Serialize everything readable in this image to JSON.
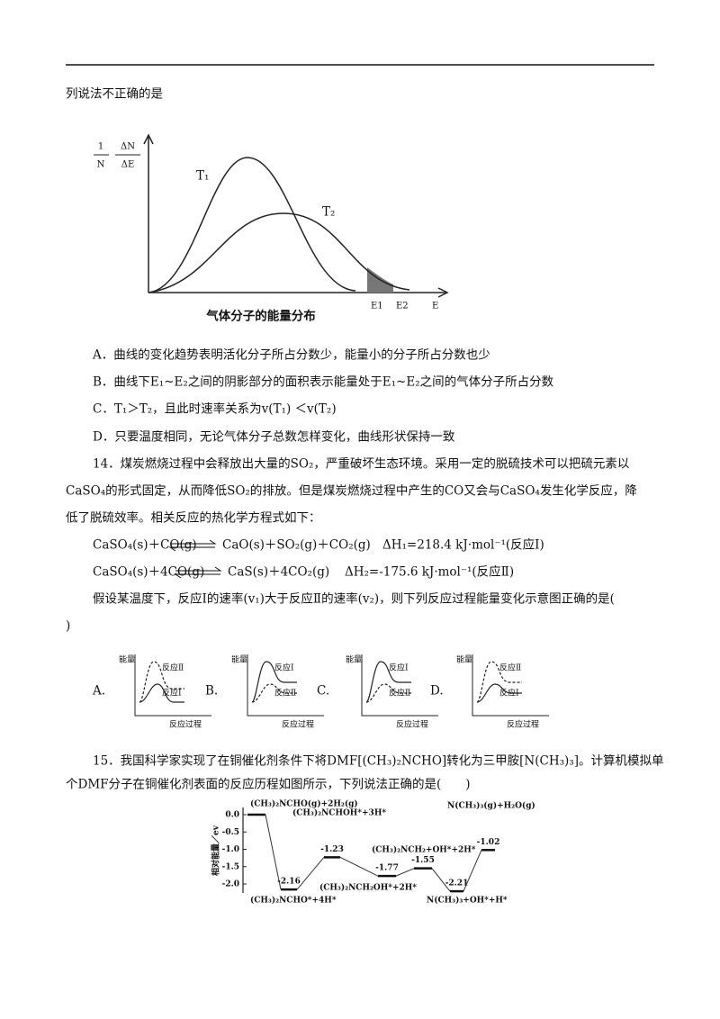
{
  "question_13_tail": "列说法不正确的是",
  "figure_1": {
    "y_label_numerator": "1",
    "y_label_denominator": "N",
    "y_label_delta_numerator": "ΔN",
    "y_label_delta_denominator": "ΔE",
    "curve_labels": [
      "T₁",
      "T₂"
    ],
    "x_labels": [
      "E1",
      "E2",
      "E"
    ],
    "caption": "气体分子的能量分布"
  },
  "options_13": [
    "A．曲线的变化趋势表明活化分子所占分数少，能量小的分子所占分数也少",
    "B．曲线下E₁~E₂之间的阴影部分的面积表示能量处于E₁~E₂之间的气体分子所占分数",
    "C．T₁＞T₂，且此时速率关系为v(T₁) ＜v(T₂)",
    "D．只要温度相同，无论气体分子总数怎样变化，曲线形状保持一致"
  ],
  "question_14": {
    "lines": [
      "14．煤炭燃烧过程中会释放出大量的SO₂，严重破坏生态环境。采用一定的脱硫技术可以把硫元素以",
      "CaSO₄的形式固定，从而降低SO₂的排放。但是煤炭燃烧过程中产生的CO又会与CaSO₄发生化学反应，降",
      "低了脱硫效率。相关反应的热化学方程式如下："
    ],
    "equations": [
      {
        "reactants": "CaSO₄(s)＋CO(g)",
        "products": "CaO(s)＋SO₂(g)＋CO₂(g)",
        "enthalpy": "ΔH₁=218.4 kJ·mol⁻¹(反应Ⅰ)"
      },
      {
        "reactants": "CaSO₄(s)＋4CO(g)",
        "products": "CaS(s)＋4CO₂(g)",
        "enthalpy": "ΔH₂=-175.6 kJ·mol⁻¹(反应Ⅱ)"
      }
    ],
    "prompt_lines": [
      "假设某温度下，反应Ⅰ的速率(v₁)大于反应Ⅱ的速率(v₂)，则下列反应过程能量变化示意图正确的是(",
      ")"
    ],
    "options": [
      {
        "letter": "A.",
        "y_label": "能量",
        "labels": [
          "反应Ⅱ",
          "反应Ⅰ"
        ],
        "x_label": "反应过程"
      },
      {
        "letter": "B.",
        "y_label": "能量",
        "labels": [
          "反应Ⅰ",
          "反应Ⅱ"
        ],
        "x_label": "反应过程"
      },
      {
        "letter": "C.",
        "y_label": "能量",
        "labels": [
          "反应Ⅰ",
          "反应Ⅱ"
        ],
        "x_label": "反应过程"
      },
      {
        "letter": "D.",
        "y_label": "能量",
        "labels": [
          "反应Ⅱ",
          "反应Ⅰ"
        ],
        "x_label": "反应过程"
      }
    ]
  },
  "question_15": {
    "lines": [
      "15．我国科学家实现了在铜催化剂条件下将DMF[(CH₃)₂NCHO]转化为三甲胺[N(CH₃)₃]。计算机模拟单",
      "个DMF分子在铜催化剂表面的反应历程如图所示，下列说法正确的是(　　)"
    ],
    "figure": {
      "y_label": "相对能量／ev",
      "yticks": [
        "0.0",
        "-0.5",
        "-1.0",
        "-1.5",
        "-2.0"
      ],
      "start_species": "(CH₃)₂NCHO(g)+2H₂(g)",
      "levels": [
        {
          "value": "-2.16",
          "species": "(CH₃)₂NCHO*+4H*"
        },
        {
          "value": "-1.23",
          "species": "(CH₃)₂NCHOH*+3H*"
        },
        {
          "value": "-1.77",
          "species": "(CH₃)₂NCH₂OH*+2H*"
        },
        {
          "value": "-1.55",
          "species": "(CH₃)₂NCH₂+OH*+2H*"
        },
        {
          "value": "-2.21",
          "species": "N(CH₃)₃+OH*+H*"
        },
        {
          "value": "-1.02",
          "species": "N(CH₃)₃(g)+H₂O(g)"
        }
      ]
    }
  }
}
